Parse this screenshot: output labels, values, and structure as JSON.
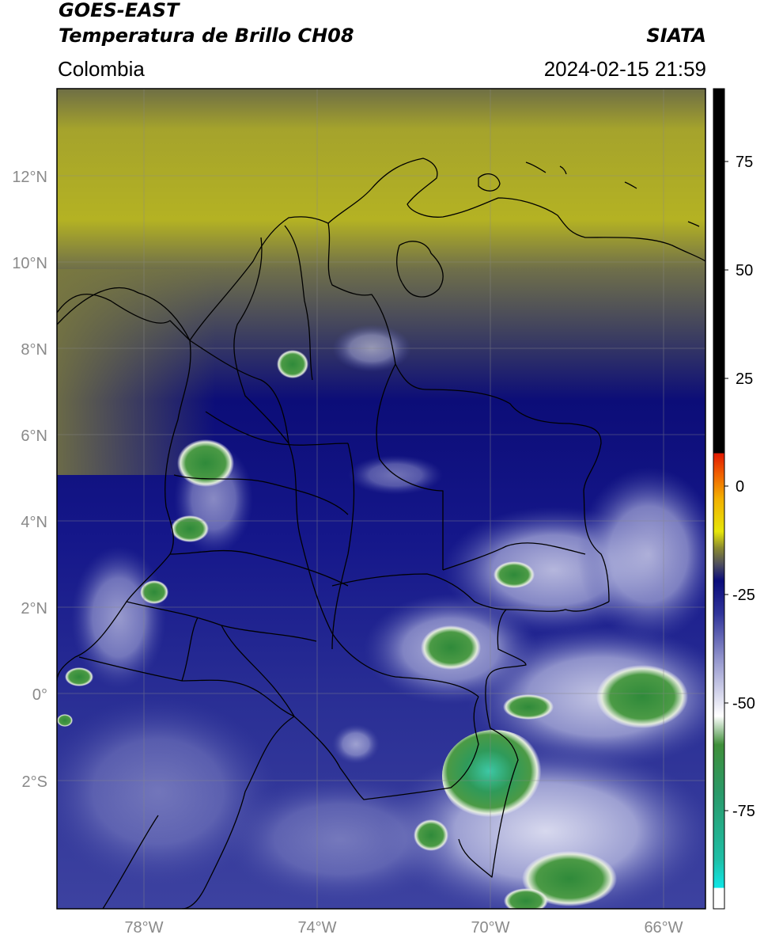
{
  "header": {
    "title_line1": "GOES-EAST",
    "title_line2": "Temperatura de Brillo CH08",
    "brand": "SIATA",
    "region": "Colombia",
    "timestamp": "2024-02-15 21:59"
  },
  "map": {
    "lat_ticks": [
      {
        "value": 12,
        "label": "12°N"
      },
      {
        "value": 10,
        "label": "10°N"
      },
      {
        "value": 8,
        "label": "8°N"
      },
      {
        "value": 6,
        "label": "6°N"
      },
      {
        "value": 4,
        "label": "4°N"
      },
      {
        "value": 2,
        "label": "2°N"
      },
      {
        "value": 0,
        "label": "0°"
      },
      {
        "value": -2,
        "label": "2°S"
      }
    ],
    "lon_ticks": [
      {
        "value": -78,
        "label": "78°W"
      },
      {
        "value": -74,
        "label": "74°W"
      },
      {
        "value": -70,
        "label": "70°W"
      },
      {
        "value": -66,
        "label": "66°W"
      }
    ],
    "colors": {
      "warm_yellow": "#b7b521",
      "dark_navy": "#0a0c7a",
      "mid_blue": "#3a3f9c",
      "light_lilac": "#c9cbe8",
      "storm_green": "#3f8f3a",
      "storm_cyan": "#3cc6a4",
      "border": "#000000",
      "grid": "#888888"
    }
  },
  "colorbar": {
    "ticks": [
      {
        "value": 75,
        "label": "75"
      },
      {
        "value": 50,
        "label": "50"
      },
      {
        "value": 25,
        "label": "25"
      },
      {
        "value": 0,
        "label": "0"
      },
      {
        "value": -25,
        "label": "-25"
      },
      {
        "value": -50,
        "label": "-50"
      },
      {
        "value": -75,
        "label": "-75"
      }
    ]
  }
}
